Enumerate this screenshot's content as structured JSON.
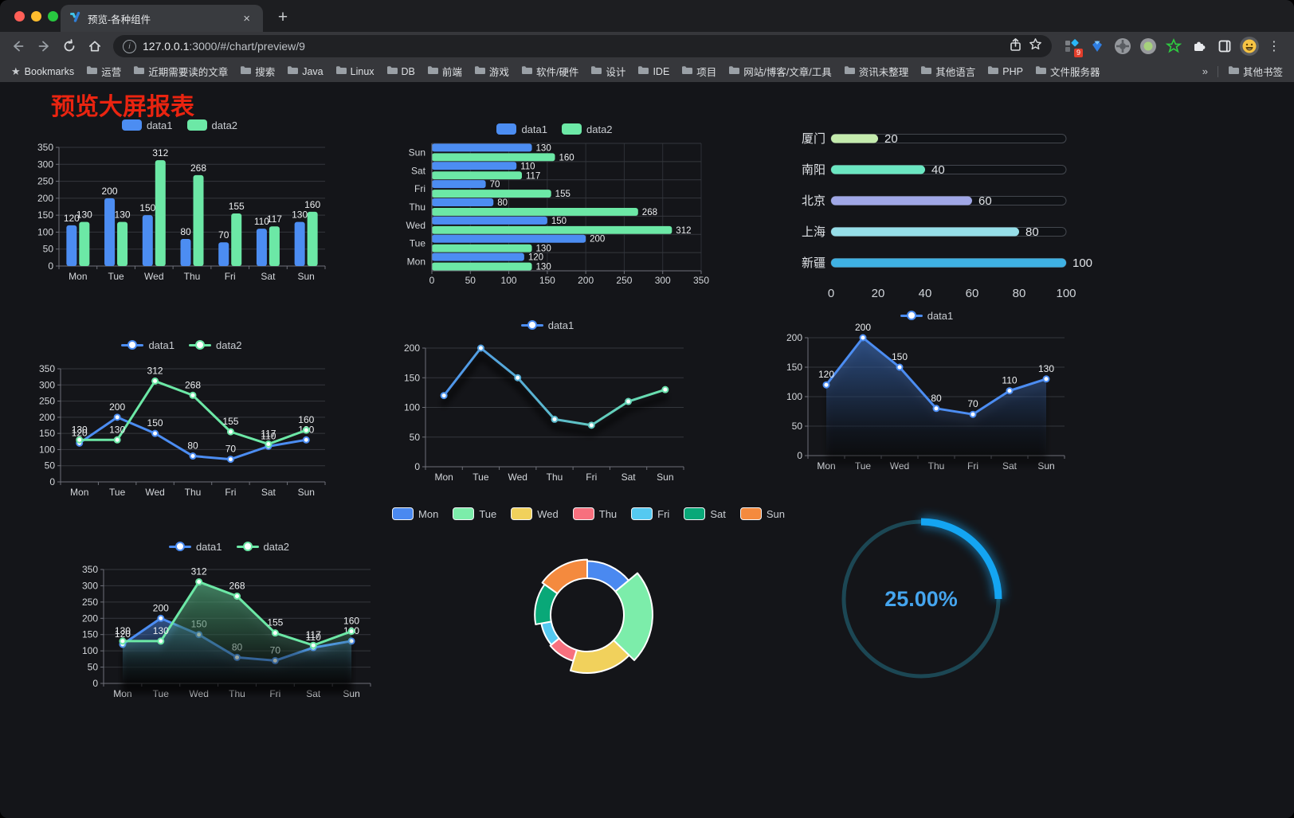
{
  "browser": {
    "tab_title": "预览-各种组件",
    "close_tab": "×",
    "new_tab": "+",
    "url_host": "127.0.0.1",
    "url_rest": ":3000/#/chart/preview/9",
    "extension_badge": "9",
    "bookmarks_label": "Bookmarks",
    "bookmark_folders": [
      "运营",
      "近期需要读的文章",
      "搜索",
      "Java",
      "Linux",
      "DB",
      "前端",
      "游戏",
      "软件/硬件",
      "设计",
      "IDE",
      "项目",
      "网站/博客/文章/工具",
      "资讯未整理",
      "其他语言",
      "PHP",
      "文件服务器"
    ],
    "overflow_chevron": "»",
    "other_bookmarks": "其他书签"
  },
  "page": {
    "title": "预览大屏报表"
  },
  "chart_data": [
    {
      "id": "grouped-bar",
      "type": "bar",
      "categories": [
        "Mon",
        "Tue",
        "Wed",
        "Thu",
        "Fri",
        "Sat",
        "Sun"
      ],
      "series": [
        {
          "name": "data1",
          "color": "#4C8DF2",
          "values": [
            120,
            200,
            150,
            80,
            70,
            110,
            130
          ]
        },
        {
          "name": "data2",
          "color": "#6CE8A6",
          "values": [
            130,
            130,
            312,
            268,
            155,
            117,
            160
          ]
        }
      ],
      "ylim": [
        0,
        350
      ],
      "ytick_step": 50,
      "show_labels": true,
      "legend_position": "top",
      "grid": true
    },
    {
      "id": "horizontal-bar",
      "type": "hbar",
      "categories": [
        "Mon",
        "Tue",
        "Wed",
        "Thu",
        "Fri",
        "Sat",
        "Sun"
      ],
      "series": [
        {
          "name": "data1",
          "color": "#4C8DF2",
          "values": [
            120,
            200,
            150,
            80,
            70,
            110,
            130
          ]
        },
        {
          "name": "data2",
          "color": "#6CE8A6",
          "values": [
            130,
            130,
            312,
            268,
            155,
            117,
            160
          ]
        }
      ],
      "xlim": [
        0,
        350
      ],
      "xtick_step": 50,
      "show_labels": true,
      "legend_position": "top",
      "grid": true
    },
    {
      "id": "progress-bars",
      "type": "progress",
      "rows": [
        {
          "label": "厦门",
          "value": 20,
          "color": "#C4EBAD"
        },
        {
          "label": "南阳",
          "value": 40,
          "color": "#6BE6C1"
        },
        {
          "label": "北京",
          "value": 60,
          "color": "#A0A7E6"
        },
        {
          "label": "上海",
          "value": 80,
          "color": "#96DEE8"
        },
        {
          "label": "新疆",
          "value": 100,
          "color": "#3FB1E3"
        }
      ],
      "xlim": [
        0,
        100
      ],
      "xticks": [
        0,
        20,
        40,
        60,
        80,
        100
      ]
    },
    {
      "id": "dual-line",
      "type": "line",
      "categories": [
        "Mon",
        "Tue",
        "Wed",
        "Thu",
        "Fri",
        "Sat",
        "Sun"
      ],
      "series": [
        {
          "name": "data1",
          "color": "#4C8DF2",
          "values": [
            120,
            200,
            150,
            80,
            70,
            110,
            130
          ]
        },
        {
          "name": "data2",
          "color": "#6CE8A6",
          "values": [
            130,
            130,
            312,
            268,
            155,
            117,
            160
          ]
        }
      ],
      "ylim": [
        0,
        350
      ],
      "ytick_step": 50,
      "show_labels": true,
      "legend_position": "top",
      "grid": true
    },
    {
      "id": "gradient-line",
      "type": "line",
      "categories": [
        "Mon",
        "Tue",
        "Wed",
        "Thu",
        "Fri",
        "Sat",
        "Sun"
      ],
      "series": [
        {
          "name": "data1",
          "color": "#4C8DF2",
          "gradient": [
            "#4C8DF2",
            "#6CE8A6"
          ],
          "shadow": true,
          "values": [
            120,
            200,
            150,
            80,
            70,
            110,
            130
          ]
        }
      ],
      "ylim": [
        0,
        200
      ],
      "ytick_step": 50,
      "show_labels": false,
      "legend_position": "top",
      "grid": true
    },
    {
      "id": "single-area",
      "type": "line",
      "categories": [
        "Mon",
        "Tue",
        "Wed",
        "Thu",
        "Fri",
        "Sat",
        "Sun"
      ],
      "series": [
        {
          "name": "data1",
          "color": "#4C8DF2",
          "area": true,
          "values": [
            120,
            200,
            150,
            80,
            70,
            110,
            130
          ]
        }
      ],
      "ylim": [
        0,
        200
      ],
      "ytick_step": 50,
      "show_labels": true,
      "legend_position": "top",
      "grid": true
    },
    {
      "id": "dual-area",
      "type": "line",
      "categories": [
        "Mon",
        "Tue",
        "Wed",
        "Thu",
        "Fri",
        "Sat",
        "Sun"
      ],
      "series": [
        {
          "name": "data1",
          "color": "#4C8DF2",
          "area": true,
          "values": [
            120,
            200,
            150,
            80,
            70,
            110,
            130
          ]
        },
        {
          "name": "data2",
          "color": "#6CE8A6",
          "area": true,
          "values": [
            130,
            130,
            312,
            268,
            155,
            117,
            160
          ]
        }
      ],
      "ylim": [
        0,
        350
      ],
      "ytick_step": 50,
      "show_labels": true,
      "legend_position": "top",
      "grid": true
    },
    {
      "id": "rose-pie",
      "type": "pie",
      "categories": [
        "Mon",
        "Tue",
        "Wed",
        "Thu",
        "Fri",
        "Sat",
        "Sun"
      ],
      "values": [
        120,
        200,
        150,
        80,
        70,
        110,
        130
      ],
      "colors": [
        "#4A89F0",
        "#7CEDAA",
        "#F1D15C",
        "#F7707E",
        "#55C9F1",
        "#09A878",
        "#F48A3E"
      ],
      "rose": true,
      "border_color": "#FFFFFF",
      "legend_position": "top"
    },
    {
      "id": "ring-gauge",
      "type": "gauge",
      "label": "25.00%",
      "percent": 25,
      "arc_color": "#14A5F2",
      "track_color": "#1C4754",
      "text_color": "#45A5EE"
    }
  ]
}
